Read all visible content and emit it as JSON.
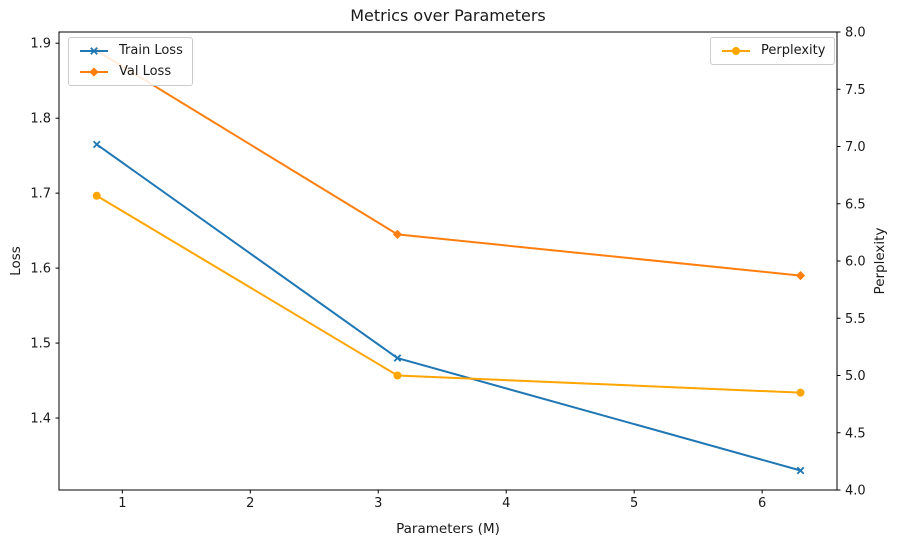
{
  "chart_data": {
    "type": "line",
    "title": "Metrics over Parameters",
    "xlabel": "Parameters (M)",
    "ylabel_left": "Loss",
    "ylabel_right": "Perplexity",
    "x": [
      0.8,
      3.15,
      6.3
    ],
    "series": [
      {
        "name": "Train Loss",
        "axis": "left",
        "color": "#1f77b4",
        "marker": "x",
        "values": [
          1.765,
          1.48,
          1.33
        ]
      },
      {
        "name": "Val Loss",
        "axis": "left",
        "color": "#ff7f0e",
        "marker": "diamond",
        "values": [
          1.89,
          1.645,
          1.59
        ]
      },
      {
        "name": "Perplexity",
        "axis": "right",
        "color": "#ffa500",
        "marker": "circle",
        "values": [
          6.57,
          5.0,
          4.85
        ]
      }
    ],
    "xlim": [
      0.505,
      6.585
    ],
    "ylim_left": [
      1.304,
      1.915
    ],
    "ylim_right": [
      4.0,
      8.0
    ],
    "xticks": [
      1,
      2,
      3,
      4,
      5,
      6
    ],
    "yticks_left": [
      1.4,
      1.5,
      1.6,
      1.7,
      1.8,
      1.9
    ],
    "yticks_right": [
      4.0,
      4.5,
      5.0,
      5.5,
      6.0,
      6.5,
      7.0,
      7.5,
      8.0
    ],
    "grid": false,
    "legend_left_items": [
      "Train Loss",
      "Val Loss"
    ],
    "legend_right_items": [
      "Perplexity"
    ],
    "axis_color": "#000000",
    "text_color": "#1a1a1a"
  }
}
